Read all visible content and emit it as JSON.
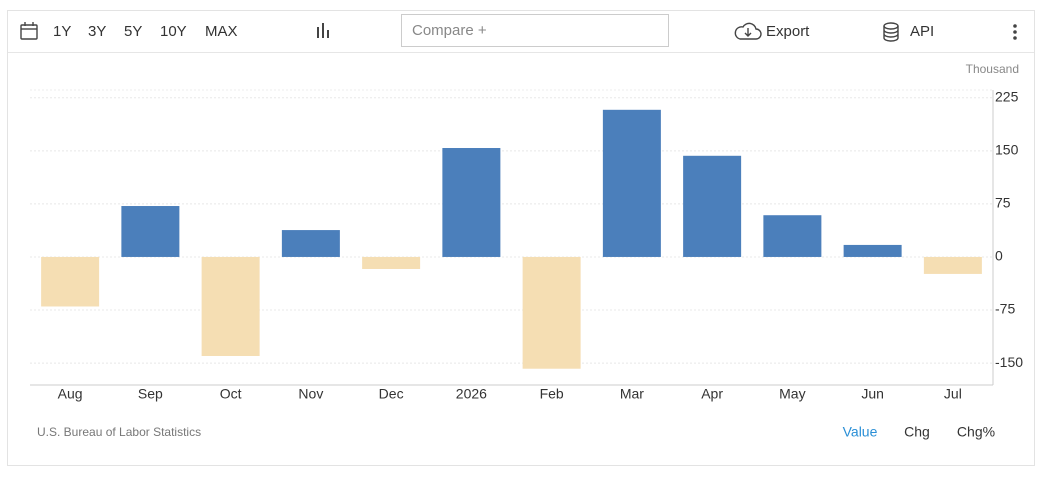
{
  "toolbar": {
    "ranges": [
      "1Y",
      "3Y",
      "5Y",
      "10Y",
      "MAX"
    ],
    "compare": "Compare +",
    "export": "Export",
    "api": "API"
  },
  "chart_data": {
    "type": "bar",
    "unit": "Thousand",
    "categories": [
      "Aug",
      "Sep",
      "Oct",
      "Nov",
      "Dec",
      "2026",
      "Feb",
      "Mar",
      "Apr",
      "May",
      "Jun",
      "Jul"
    ],
    "values": [
      -70,
      72,
      -140,
      38,
      -17,
      154,
      -158,
      208,
      143,
      59,
      17,
      -24
    ],
    "color": "#4b7fbb",
    "negative_color": "#f5deb3",
    "ylim": [
      -181,
      236
    ],
    "yticks": [
      -150,
      -75,
      0,
      75,
      150,
      225
    ],
    "grid": true,
    "source": "U.S. Bureau of Labor Statistics"
  },
  "tabs": [
    "Value",
    "Chg",
    "Chg%"
  ],
  "active_tab": 0
}
